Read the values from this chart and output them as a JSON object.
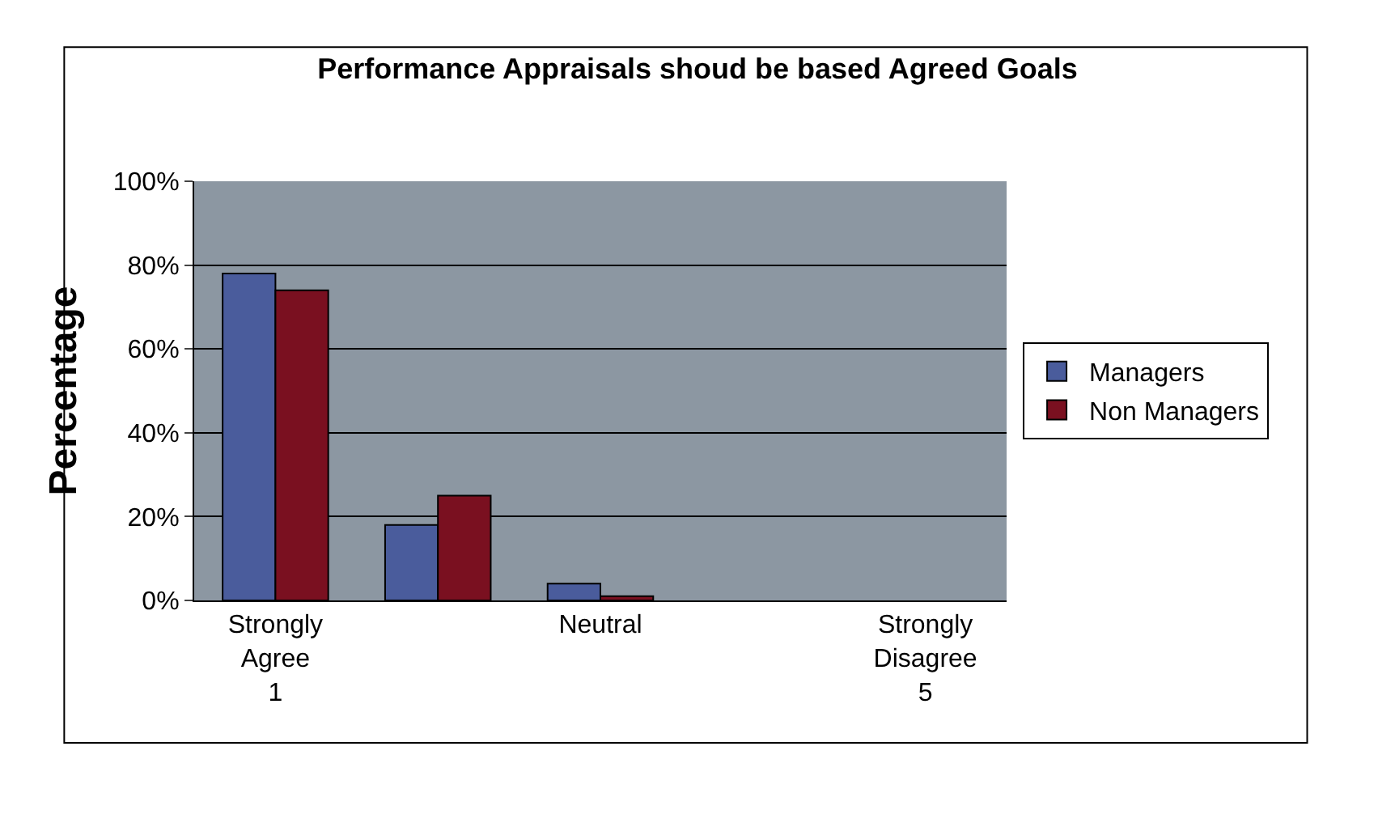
{
  "chart_data": {
    "type": "bar",
    "title": "Performance Appraisals shoud be based Agreed Goals",
    "ylabel": "Percentage",
    "categories": [
      "Strongly\nAgree\n1",
      null,
      "Neutral",
      null,
      "Strongly\nDisagree\n5"
    ],
    "series": [
      {
        "name": "Managers",
        "color": "#4a5c9c",
        "values": [
          78,
          18,
          4,
          null,
          null
        ]
      },
      {
        "name": "Non Managers",
        "color": "#7a1020",
        "values": [
          74,
          25,
          1,
          null,
          null
        ]
      }
    ],
    "ylim": [
      0,
      100
    ],
    "yticks": [
      {
        "value": 0,
        "label": "0%"
      },
      {
        "value": 20,
        "label": "20%"
      },
      {
        "value": 40,
        "label": "40%"
      },
      {
        "value": 60,
        "label": "60%"
      },
      {
        "value": 80,
        "label": "80%"
      },
      {
        "value": 100,
        "label": "100%"
      }
    ],
    "grid": "y",
    "legend": "right"
  }
}
